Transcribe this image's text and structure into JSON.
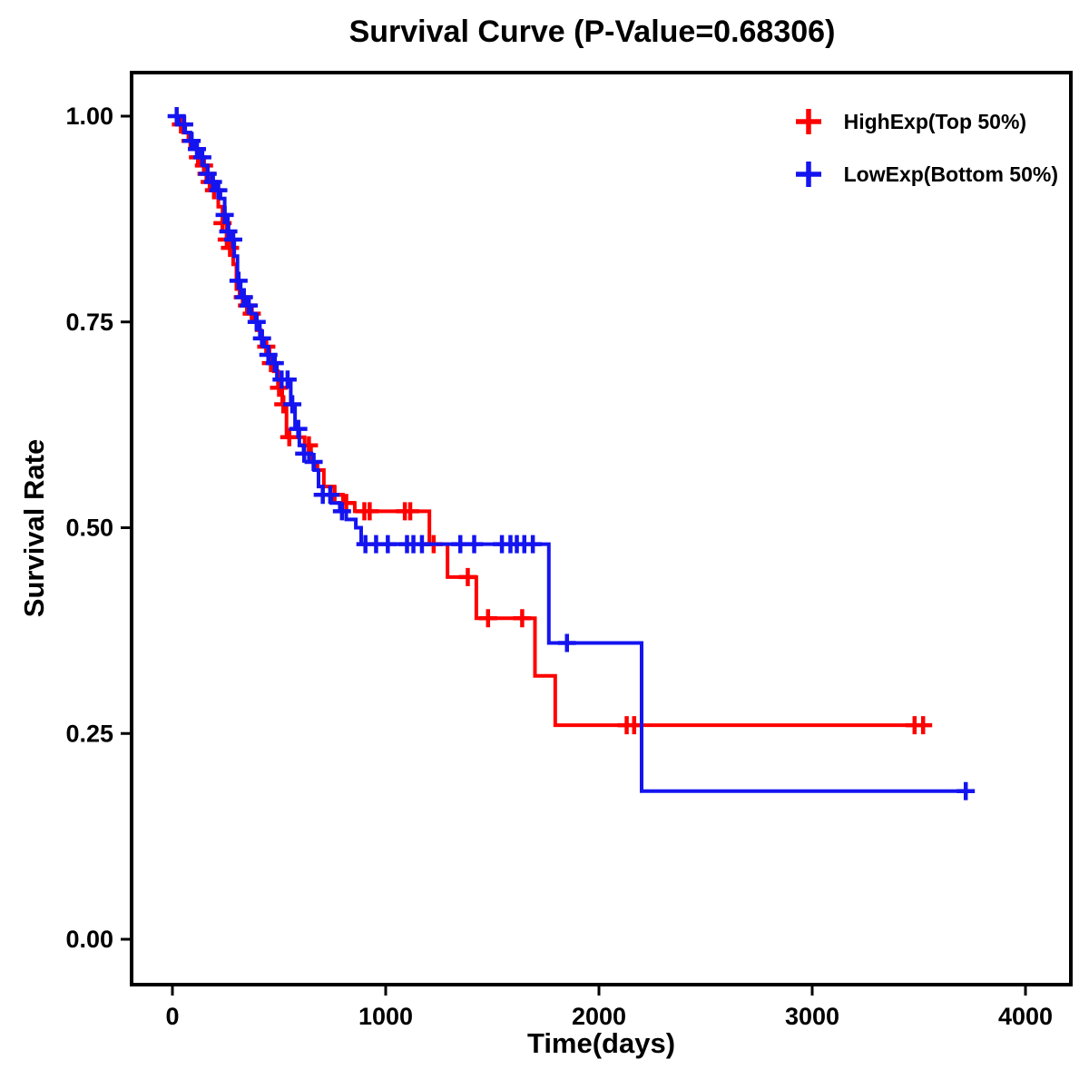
{
  "title": "Survival Curve (P-Value=0.68306)",
  "p_value": "0.68306",
  "chart_data": {
    "type": "line",
    "subtype": "kaplan-meier-step-survival",
    "title": "Survival Curve (P-Value=0.68306)",
    "xlabel": "Time(days)",
    "ylabel": "Survival Rate",
    "xlim": [
      -200,
      4200
    ],
    "ylim": [
      -0.05,
      1.05
    ],
    "x_tick_values": [
      0,
      1000,
      2000,
      3000,
      4000
    ],
    "x_tick_labels": [
      "0",
      "1000",
      "2000",
      "3000",
      "4000"
    ],
    "y_tick_values": [
      0.0,
      0.25,
      0.5,
      0.75,
      1.0
    ],
    "y_tick_labels": [
      "0.00",
      "0.25",
      "0.50",
      "0.75",
      "1.00"
    ],
    "grid": false,
    "legend_position": "top-right-inside",
    "series": [
      {
        "name": "HighExp(Top 50%)",
        "color": "#fe0000",
        "end_time": 3530,
        "steps": [
          [
            0,
            1.0
          ],
          [
            25,
            0.99
          ],
          [
            50,
            0.98
          ],
          [
            75,
            0.97
          ],
          [
            95,
            0.96
          ],
          [
            115,
            0.95
          ],
          [
            135,
            0.94
          ],
          [
            155,
            0.93
          ],
          [
            175,
            0.92
          ],
          [
            195,
            0.91
          ],
          [
            215,
            0.89
          ],
          [
            235,
            0.87
          ],
          [
            255,
            0.85
          ],
          [
            270,
            0.84
          ],
          [
            285,
            0.82
          ],
          [
            300,
            0.79
          ],
          [
            315,
            0.78
          ],
          [
            335,
            0.77
          ],
          [
            355,
            0.76
          ],
          [
            375,
            0.75
          ],
          [
            395,
            0.74
          ],
          [
            415,
            0.73
          ],
          [
            435,
            0.72
          ],
          [
            455,
            0.7
          ],
          [
            475,
            0.69
          ],
          [
            495,
            0.67
          ],
          [
            515,
            0.65
          ],
          [
            535,
            0.61
          ],
          [
            620,
            0.6
          ],
          [
            650,
            0.58
          ],
          [
            680,
            0.57
          ],
          [
            710,
            0.55
          ],
          [
            760,
            0.54
          ],
          [
            800,
            0.53
          ],
          [
            855,
            0.52
          ],
          [
            1205,
            0.48
          ],
          [
            1290,
            0.44
          ],
          [
            1425,
            0.39
          ],
          [
            1700,
            0.32
          ],
          [
            1795,
            0.26
          ]
        ],
        "censor_times": [
          40,
          85,
          120,
          148,
          160,
          175,
          195,
          235,
          255,
          270,
          330,
          350,
          372,
          440,
          462,
          500,
          520,
          548,
          640,
          760,
          815,
          900,
          925,
          1090,
          1115,
          1225,
          1385,
          1480,
          1640,
          2130,
          2165,
          3480,
          3520
        ]
      },
      {
        "name": "LowExp(Bottom 50%)",
        "color": "#1414f0",
        "end_time": 3730,
        "steps": [
          [
            0,
            1.0
          ],
          [
            30,
            0.99
          ],
          [
            60,
            0.98
          ],
          [
            85,
            0.97
          ],
          [
            105,
            0.96
          ],
          [
            125,
            0.95
          ],
          [
            145,
            0.94
          ],
          [
            165,
            0.93
          ],
          [
            185,
            0.92
          ],
          [
            205,
            0.91
          ],
          [
            225,
            0.9
          ],
          [
            245,
            0.88
          ],
          [
            260,
            0.86
          ],
          [
            275,
            0.85
          ],
          [
            290,
            0.83
          ],
          [
            305,
            0.8
          ],
          [
            320,
            0.78
          ],
          [
            345,
            0.77
          ],
          [
            370,
            0.76
          ],
          [
            390,
            0.75
          ],
          [
            410,
            0.73
          ],
          [
            430,
            0.72
          ],
          [
            450,
            0.71
          ],
          [
            470,
            0.7
          ],
          [
            490,
            0.68
          ],
          [
            555,
            0.65
          ],
          [
            575,
            0.62
          ],
          [
            595,
            0.6
          ],
          [
            615,
            0.59
          ],
          [
            640,
            0.58
          ],
          [
            665,
            0.57
          ],
          [
            685,
            0.55
          ],
          [
            705,
            0.54
          ],
          [
            745,
            0.53
          ],
          [
            785,
            0.52
          ],
          [
            815,
            0.51
          ],
          [
            860,
            0.5
          ],
          [
            885,
            0.48
          ],
          [
            1765,
            0.36
          ],
          [
            2200,
            0.18
          ]
        ],
        "censor_times": [
          20,
          55,
          90,
          115,
          140,
          165,
          190,
          215,
          245,
          262,
          285,
          310,
          335,
          358,
          395,
          420,
          450,
          480,
          512,
          540,
          562,
          590,
          618,
          662,
          705,
          740,
          795,
          905,
          955,
          1010,
          1100,
          1130,
          1170,
          1350,
          1415,
          1545,
          1585,
          1615,
          1650,
          1690,
          1850,
          3720
        ]
      }
    ]
  }
}
